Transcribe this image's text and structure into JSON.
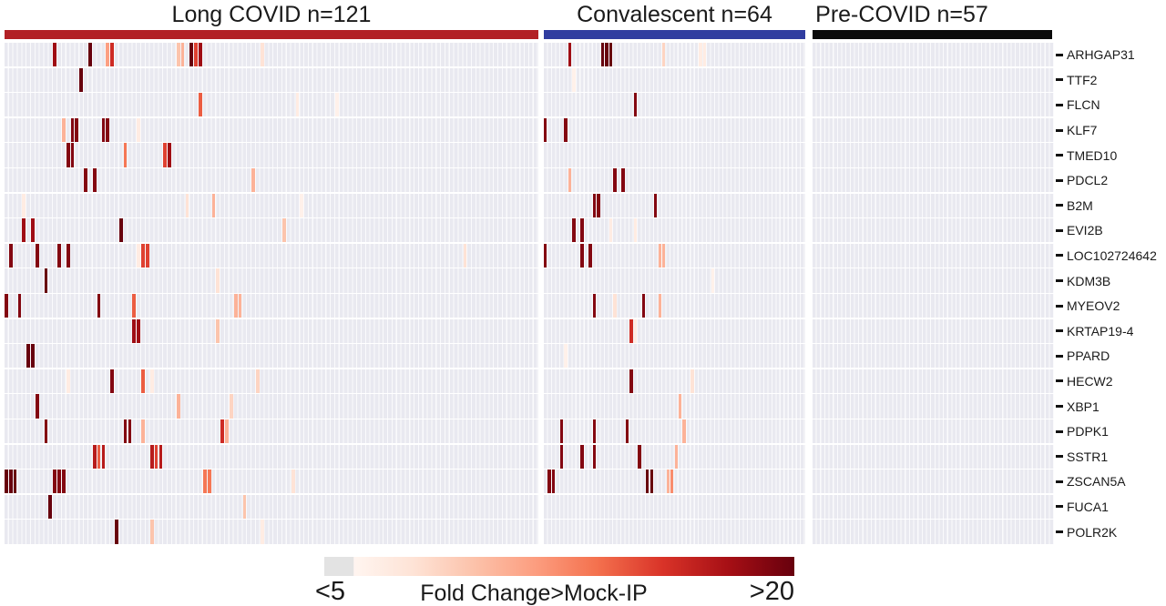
{
  "chart_data": {
    "type": "heatmap",
    "description": "Sparse gene-by-sample heatmap; three sample cohorts as column groups, 20 gene rows. Most cells are below threshold (light lavender background); scattered cells show fold-change values in a Reds palette.",
    "column_groups": [
      {
        "label": "Long COVID n=121",
        "n_columns": 121,
        "header_color": "#b22025"
      },
      {
        "label": "Convalescent n=64",
        "n_columns": 64,
        "header_color": "#303da0"
      },
      {
        "label": "Pre-COVID n=57",
        "n_columns": 57,
        "header_color": "#0b0b0b"
      }
    ],
    "row_labels": [
      "ARHGAP31",
      "TTF2",
      "FLCN",
      "KLF7",
      "TMED10",
      "PDCL2",
      "B2M",
      "EVI2B",
      "LOC102724642",
      "KDM3B",
      "MYEOV2",
      "KRTAP19-4",
      "PPARD",
      "HECW2",
      "XBP1",
      "PDPK1",
      "SSTR1",
      "ZSCAN5A",
      "FUCA1",
      "POLR2K"
    ],
    "color_scale": {
      "label": "Fold Change>Mock-IP",
      "min_label": "<5",
      "max_label": ">20",
      "min_value": 5,
      "max_value": 20,
      "palette": "Reds",
      "below_threshold_color": "#e3e3e3",
      "background_cell_color": "#e9e9f0",
      "gridline_color": "#fafafc",
      "gradient_stops": [
        {
          "pos": 0.0,
          "color": "#e3e3e3"
        },
        {
          "pos": 0.062,
          "color": "#e3e3e3"
        },
        {
          "pos": 0.063,
          "color": "#fff5f0"
        },
        {
          "pos": 0.19,
          "color": "#fee3d6"
        },
        {
          "pos": 0.32,
          "color": "#fcc2aa"
        },
        {
          "pos": 0.45,
          "color": "#fc9d7f"
        },
        {
          "pos": 0.58,
          "color": "#f4714e"
        },
        {
          "pos": 0.72,
          "color": "#d93328"
        },
        {
          "pos": 0.86,
          "color": "#a60f15"
        },
        {
          "pos": 1.0,
          "color": "#67000d"
        }
      ]
    },
    "cell_tuple_format": [
      "row_index",
      "group_index",
      "column_index",
      "fold_change"
    ],
    "cells_above_threshold": [
      [
        0,
        0,
        11,
        18
      ],
      [
        0,
        0,
        19,
        20
      ],
      [
        0,
        0,
        23,
        11
      ],
      [
        0,
        0,
        24,
        16
      ],
      [
        0,
        0,
        39,
        9
      ],
      [
        0,
        0,
        40,
        10
      ],
      [
        0,
        0,
        42,
        20
      ],
      [
        0,
        0,
        43,
        15
      ],
      [
        0,
        0,
        44,
        18
      ],
      [
        0,
        0,
        58,
        7
      ],
      [
        0,
        1,
        6,
        18
      ],
      [
        0,
        1,
        14,
        20
      ],
      [
        0,
        1,
        15,
        20
      ],
      [
        0,
        1,
        16,
        20
      ],
      [
        0,
        1,
        29,
        8
      ],
      [
        0,
        1,
        38,
        6
      ],
      [
        0,
        1,
        39,
        6
      ],
      [
        1,
        0,
        17,
        20
      ],
      [
        1,
        1,
        7,
        5.5
      ],
      [
        2,
        0,
        44,
        14
      ],
      [
        2,
        0,
        66,
        6
      ],
      [
        2,
        0,
        75,
        5.5
      ],
      [
        2,
        1,
        22,
        19
      ],
      [
        3,
        0,
        13,
        10
      ],
      [
        3,
        0,
        15,
        19
      ],
      [
        3,
        0,
        16,
        19
      ],
      [
        3,
        0,
        22,
        19
      ],
      [
        3,
        0,
        23,
        19
      ],
      [
        3,
        0,
        30,
        6
      ],
      [
        3,
        1,
        0,
        19
      ],
      [
        3,
        1,
        5,
        19
      ],
      [
        4,
        0,
        14,
        19
      ],
      [
        4,
        0,
        15,
        19
      ],
      [
        4,
        0,
        27,
        13
      ],
      [
        4,
        0,
        36,
        15
      ],
      [
        4,
        0,
        37,
        18
      ],
      [
        5,
        0,
        18,
        19
      ],
      [
        5,
        0,
        20,
        19
      ],
      [
        5,
        0,
        56,
        10
      ],
      [
        5,
        1,
        6,
        10
      ],
      [
        5,
        1,
        17,
        19
      ],
      [
        5,
        1,
        19,
        19
      ],
      [
        6,
        0,
        4,
        6
      ],
      [
        6,
        0,
        41,
        7
      ],
      [
        6,
        0,
        47,
        10
      ],
      [
        6,
        0,
        67,
        5.5
      ],
      [
        6,
        1,
        12,
        19
      ],
      [
        6,
        1,
        13,
        19
      ],
      [
        6,
        1,
        27,
        19
      ],
      [
        7,
        0,
        4,
        18
      ],
      [
        7,
        0,
        6,
        18
      ],
      [
        7,
        0,
        26,
        20
      ],
      [
        7,
        0,
        63,
        9
      ],
      [
        7,
        1,
        7,
        19
      ],
      [
        7,
        1,
        9,
        19
      ],
      [
        7,
        1,
        16,
        6
      ],
      [
        7,
        1,
        22,
        6
      ],
      [
        8,
        0,
        1,
        19
      ],
      [
        8,
        0,
        7,
        19
      ],
      [
        8,
        0,
        12,
        19
      ],
      [
        8,
        0,
        14,
        19
      ],
      [
        8,
        0,
        30,
        6
      ],
      [
        8,
        0,
        31,
        15
      ],
      [
        8,
        0,
        32,
        15
      ],
      [
        8,
        0,
        104,
        7
      ],
      [
        8,
        1,
        0,
        19
      ],
      [
        8,
        1,
        9,
        19
      ],
      [
        8,
        1,
        11,
        19
      ],
      [
        8,
        1,
        28,
        10
      ],
      [
        8,
        1,
        29,
        10
      ],
      [
        9,
        0,
        9,
        20
      ],
      [
        9,
        0,
        48,
        7
      ],
      [
        9,
        1,
        41,
        5.5
      ],
      [
        10,
        0,
        0,
        19
      ],
      [
        10,
        0,
        3,
        19
      ],
      [
        10,
        0,
        21,
        19
      ],
      [
        10,
        0,
        29,
        14
      ],
      [
        10,
        0,
        52,
        10
      ],
      [
        10,
        0,
        53,
        10
      ],
      [
        10,
        1,
        12,
        19
      ],
      [
        10,
        1,
        17,
        7
      ],
      [
        10,
        1,
        24,
        19
      ],
      [
        10,
        1,
        28,
        10
      ],
      [
        11,
        0,
        29,
        18
      ],
      [
        11,
        0,
        30,
        18
      ],
      [
        11,
        0,
        48,
        9
      ],
      [
        11,
        1,
        21,
        16
      ],
      [
        11,
        1,
        22,
        6
      ],
      [
        12,
        0,
        5,
        20
      ],
      [
        12,
        0,
        6,
        20
      ],
      [
        12,
        1,
        5,
        5.5
      ],
      [
        13,
        0,
        14,
        6
      ],
      [
        13,
        0,
        24,
        19
      ],
      [
        13,
        0,
        31,
        14
      ],
      [
        13,
        0,
        33,
        6
      ],
      [
        13,
        0,
        57,
        8
      ],
      [
        13,
        1,
        21,
        19
      ],
      [
        13,
        1,
        36,
        7
      ],
      [
        14,
        0,
        7,
        19
      ],
      [
        14,
        0,
        39,
        10
      ],
      [
        14,
        0,
        51,
        8
      ],
      [
        14,
        1,
        33,
        10
      ],
      [
        15,
        0,
        9,
        19
      ],
      [
        15,
        0,
        27,
        19
      ],
      [
        15,
        0,
        28,
        19
      ],
      [
        15,
        0,
        31,
        10
      ],
      [
        15,
        0,
        49,
        16
      ],
      [
        15,
        0,
        50,
        10
      ],
      [
        15,
        1,
        4,
        19
      ],
      [
        15,
        1,
        12,
        19
      ],
      [
        15,
        1,
        20,
        19
      ],
      [
        15,
        1,
        34,
        10
      ],
      [
        16,
        0,
        20,
        17
      ],
      [
        16,
        0,
        21,
        14
      ],
      [
        16,
        0,
        22,
        17
      ],
      [
        16,
        0,
        33,
        17
      ],
      [
        16,
        0,
        34,
        15
      ],
      [
        16,
        0,
        35,
        17
      ],
      [
        16,
        1,
        4,
        19
      ],
      [
        16,
        1,
        9,
        19
      ],
      [
        16,
        1,
        12,
        19
      ],
      [
        16,
        1,
        23,
        19
      ],
      [
        16,
        1,
        32,
        10
      ],
      [
        17,
        0,
        0,
        20
      ],
      [
        17,
        0,
        1,
        20
      ],
      [
        17,
        0,
        2,
        20
      ],
      [
        17,
        0,
        11,
        19
      ],
      [
        17,
        0,
        12,
        19
      ],
      [
        17,
        0,
        13,
        19
      ],
      [
        17,
        0,
        45,
        13
      ],
      [
        17,
        0,
        46,
        13
      ],
      [
        17,
        0,
        65,
        7
      ],
      [
        17,
        1,
        1,
        19
      ],
      [
        17,
        1,
        2,
        19
      ],
      [
        17,
        1,
        25,
        20
      ],
      [
        17,
        1,
        26,
        20
      ],
      [
        17,
        1,
        30,
        10
      ],
      [
        17,
        1,
        31,
        12
      ],
      [
        18,
        0,
        10,
        20
      ],
      [
        18,
        0,
        54,
        9
      ],
      [
        19,
        0,
        25,
        20
      ],
      [
        19,
        0,
        33,
        9
      ],
      [
        19,
        0,
        58,
        6
      ]
    ]
  }
}
